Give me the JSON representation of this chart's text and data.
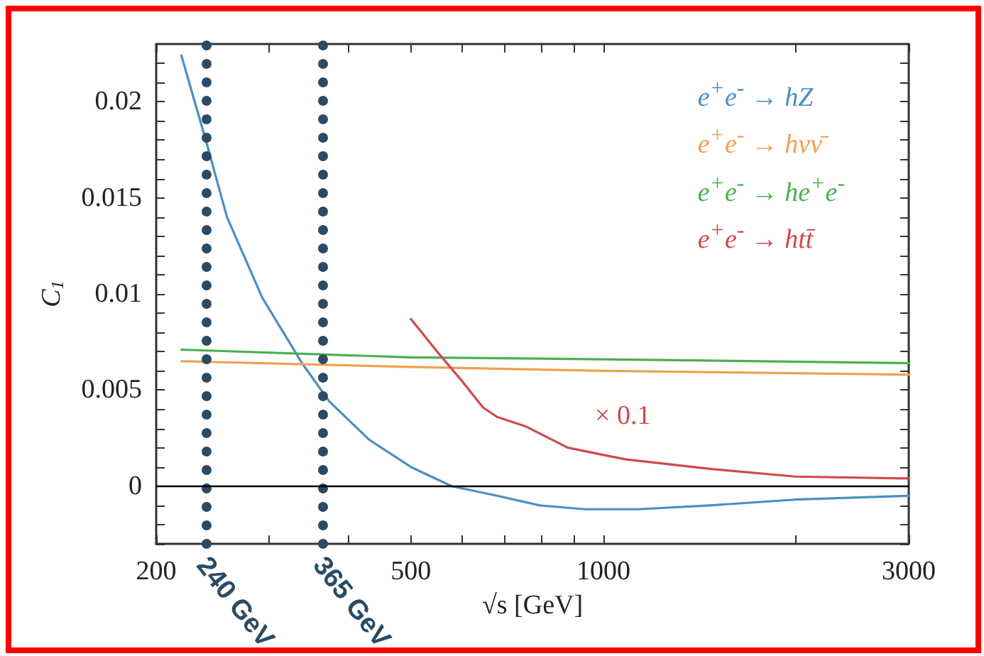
{
  "chart_data": {
    "type": "line",
    "xlabel": "√s [GeV]",
    "ylabel": "C$_{1}$",
    "log": "x",
    "xlim": [
      200,
      3000
    ],
    "xticks": [
      200,
      {
        "value": 300,
        "label": null
      },
      {
        "value": 400,
        "label": null
      },
      500,
      {
        "value": 600,
        "label": null
      },
      {
        "value": 700,
        "label": null
      },
      {
        "value": 800,
        "label": null
      },
      {
        "value": 900,
        "label": null
      },
      1000,
      {
        "value": 2000,
        "label": null
      },
      3000
    ],
    "ylim": [
      -0.003,
      0.023
    ],
    "yticks": [
      {
        "value": -0.003,
        "label": null
      },
      {
        "value": -0.002,
        "label": null
      },
      {
        "value": -0.001,
        "label": null
      },
      0,
      {
        "value": 0.001,
        "label": null
      },
      {
        "value": 0.002,
        "label": null
      },
      {
        "value": 0.003,
        "label": null
      },
      {
        "value": 0.004,
        "label": null
      },
      0.005,
      {
        "value": 0.006,
        "label": null
      },
      {
        "value": 0.007,
        "label": null
      },
      {
        "value": 0.008,
        "label": null
      },
      {
        "value": 0.009,
        "label": null
      },
      0.01,
      {
        "value": 0.011,
        "label": null
      },
      {
        "value": 0.012,
        "label": null
      },
      {
        "value": 0.013,
        "label": null
      },
      {
        "value": 0.014,
        "label": null
      },
      0.015,
      {
        "value": 0.016,
        "label": null
      },
      {
        "value": 0.017,
        "label": null
      },
      {
        "value": 0.018,
        "label": null
      },
      {
        "value": 0.019,
        "label": null
      },
      0.02,
      {
        "value": 0.021,
        "label": null
      },
      {
        "value": 0.022,
        "label": null
      }
    ],
    "grid": false,
    "legend": "top right",
    "marker": "none",
    "line_style": "solid",
    "series": [
      {
        "name": "e$^{+}$e$^{-}$ → hZ",
        "color": "#4a8fc2",
        "x": [
          219,
          240,
          258,
          293,
          338,
          373,
          431,
          500,
          579,
          682,
          795,
          934,
          1136,
          1466,
          1993,
          3000
        ],
        "values": [
          0.0224,
          0.0178,
          0.014,
          0.0098,
          0.0064,
          0.0044,
          0.0024,
          0.001,
          0.0,
          -0.0005,
          -0.001,
          -0.0012,
          -0.0012,
          -0.001,
          -0.0007,
          -0.0005
        ]
      },
      {
        "name": "e$^{+}$e$^{-}$ → hνν̄",
        "color": "#f0a04e",
        "x": [
          219,
          500,
          1000,
          3000
        ],
        "values": [
          0.0065,
          0.0062,
          0.006,
          0.0058
        ]
      },
      {
        "name": "e$^{+}$e$^{-}$ → he$^{+}$e$^{-}$",
        "color": "#4caf50",
        "x": [
          219,
          500,
          1000,
          3000
        ],
        "values": [
          0.0071,
          0.0067,
          0.0066,
          0.0064
        ]
      },
      {
        "name": "e$^{+}$e$^{-}$ → htt̄",
        "color": "#d0494b",
        "x": [
          500,
          556,
          600,
          648,
          682,
          757,
          880,
          1080,
          1466,
          1993,
          3000
        ],
        "values": [
          0.0087,
          0.0068,
          0.0055,
          0.0041,
          0.0036,
          0.0031,
          0.002,
          0.0014,
          0.0009,
          0.0005,
          0.0004
        ]
      }
    ],
    "ref_lines": [
      {
        "axis": "x",
        "value": 240,
        "color": "#2c4a63",
        "line_style": "dotted"
      },
      {
        "axis": "x",
        "value": 365,
        "color": "#2c4a63",
        "line_style": "dotted"
      },
      {
        "axis": "y",
        "value": 0,
        "color": "#000000",
        "line_style": "solid"
      }
    ],
    "annotations": [
      "× 0.1",
      {
        "text": "240 GeV",
        "x": 240,
        "y": -0.003
      },
      {
        "text": "365 GeV",
        "x": 365,
        "y": -0.003
      }
    ]
  }
}
